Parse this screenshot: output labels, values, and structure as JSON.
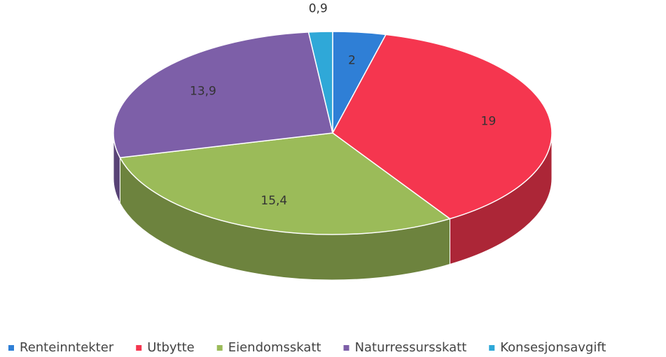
{
  "chart_data": {
    "type": "pie",
    "categories": [
      "Renteinntekter",
      "Utbytte",
      "Eiendomsskatt",
      "Naturressursskatt",
      "Konsesjonsavgift"
    ],
    "values": [
      2,
      19,
      15.4,
      13.9,
      0.9
    ],
    "value_labels": [
      "2",
      "19",
      "15,4",
      "13,9",
      "0,9"
    ],
    "colors": [
      "#2f7fd6",
      "#f5364f",
      "#9bbb59",
      "#7d5fa8",
      "#2fa8d8"
    ],
    "legend": "bottom"
  }
}
